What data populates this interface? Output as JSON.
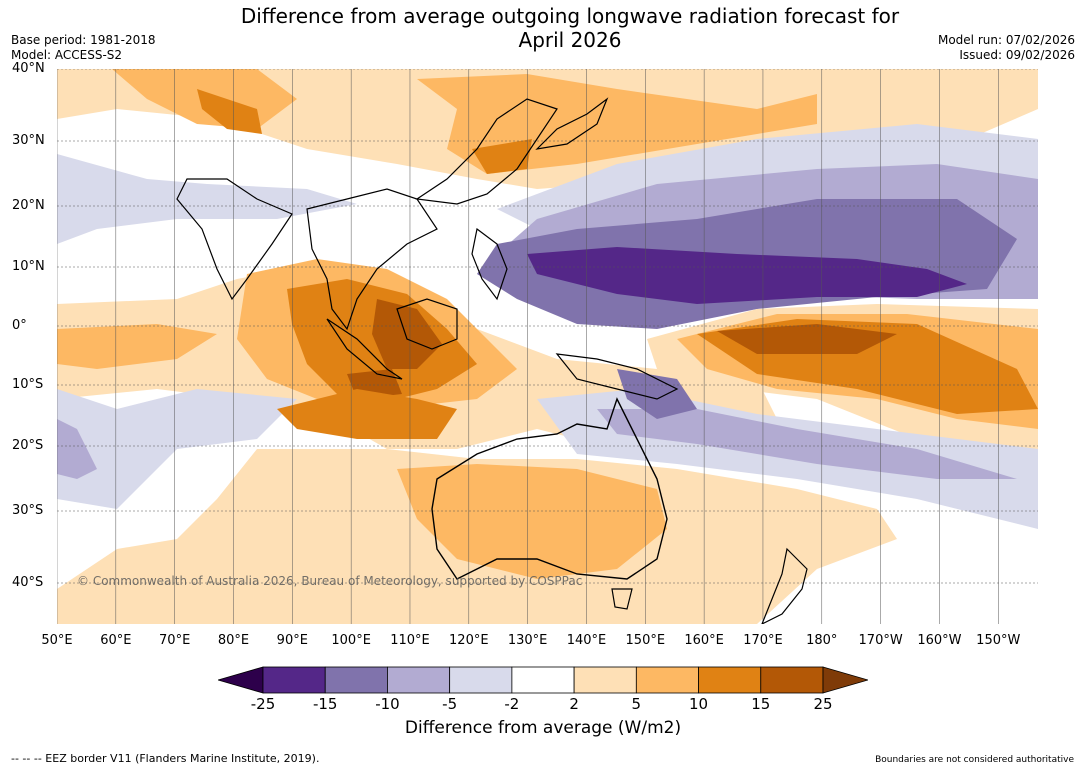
{
  "header": {
    "title_line1": "Difference from average outgoing longwave radiation forecast for",
    "title_line2": "April 2026",
    "base_period": "Base period: 1981-2018",
    "model": "Model: ACCESS-S2",
    "model_run": "Model run: 07/02/2026",
    "issued": "Issued: 09/02/2026"
  },
  "map": {
    "lat_labels": [
      "40°N",
      "30°N",
      "20°N",
      "10°N",
      "0°",
      "10°S",
      "20°S",
      "30°S",
      "40°S"
    ],
    "lon_labels": [
      "50°E",
      "60°E",
      "70°E",
      "80°E",
      "90°E",
      "100°E",
      "110°E",
      "120°E",
      "130°E",
      "140°E",
      "150°E",
      "160°E",
      "170°E",
      "180°",
      "170°W",
      "160°W",
      "150°W"
    ],
    "copyright": "© Commonwealth of Australia 2026, Bureau of Meteorology, supported by COSPPac"
  },
  "colorbar": {
    "ticks": [
      "-25",
      "-15",
      "-10",
      "-5",
      "-2",
      "2",
      "5",
      "10",
      "15",
      "25"
    ],
    "colors": [
      "#2d004b",
      "#542788",
      "#8073ac",
      "#b2abd2",
      "#d8daeb",
      "#ffffff",
      "#fee0b6",
      "#fdb863",
      "#e08214",
      "#b35806",
      "#7f3b08"
    ],
    "label": "Difference from average (W/m2)"
  },
  "footer": {
    "eez_note": "--  --  -- EEZ border V11 (Flanders Marine Institute, 2019).",
    "disclaimer": "Boundaries are not considered authoritative"
  }
}
